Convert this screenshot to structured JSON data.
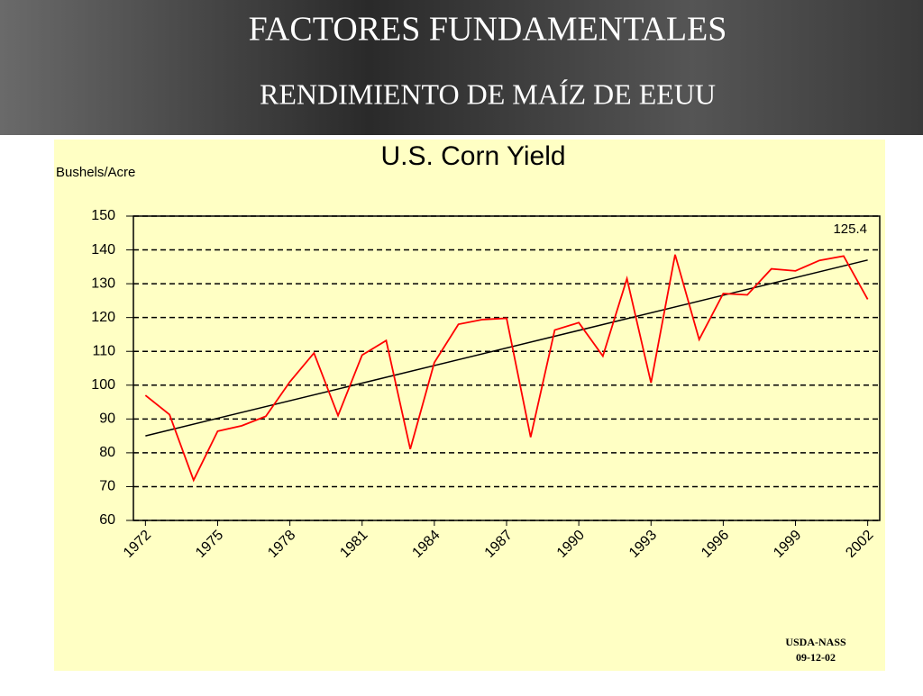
{
  "slide": {
    "title": "FACTORES FUNDAMENTALES",
    "subtitle": "RENDIMIENTO DE MAÍZ DE EEUU"
  },
  "chart_data": {
    "type": "line",
    "title": "U.S. Corn Yield",
    "y_label": "Bushels/Acre",
    "x": [
      1972,
      1973,
      1974,
      1975,
      1976,
      1977,
      1978,
      1979,
      1980,
      1981,
      1982,
      1983,
      1984,
      1985,
      1986,
      1987,
      1988,
      1989,
      1990,
      1991,
      1992,
      1993,
      1994,
      1995,
      1996,
      1997,
      1998,
      1999,
      2000,
      2001,
      2002
    ],
    "series": [
      {
        "color": "#ff0000",
        "values": [
          97.0,
          91.3,
          71.9,
          86.4,
          88.0,
          90.8,
          101.0,
          109.5,
          91.0,
          108.9,
          113.2,
          81.1,
          106.7,
          118.0,
          119.4,
          119.8,
          84.6,
          116.3,
          118.5,
          108.6,
          131.5,
          100.7,
          138.6,
          113.5,
          127.1,
          126.7,
          134.4,
          133.8,
          136.9,
          138.2,
          125.4
        ]
      }
    ],
    "trend_line": {
      "x": [
        1972,
        2002
      ],
      "values": [
        85,
        137
      ],
      "color": "#000000"
    },
    "annotation": "125.4",
    "xlim": [
      1971.5,
      2002.5
    ],
    "xticks": [
      1972,
      1975,
      1978,
      1981,
      1984,
      1987,
      1990,
      1993,
      1996,
      1999,
      2002
    ],
    "ylim": [
      60,
      150
    ],
    "yticks": [
      60,
      70,
      80,
      90,
      100,
      110,
      120,
      130,
      140,
      150
    ],
    "grid": true,
    "source": [
      "USDA-NASS",
      "09-12-02"
    ]
  }
}
